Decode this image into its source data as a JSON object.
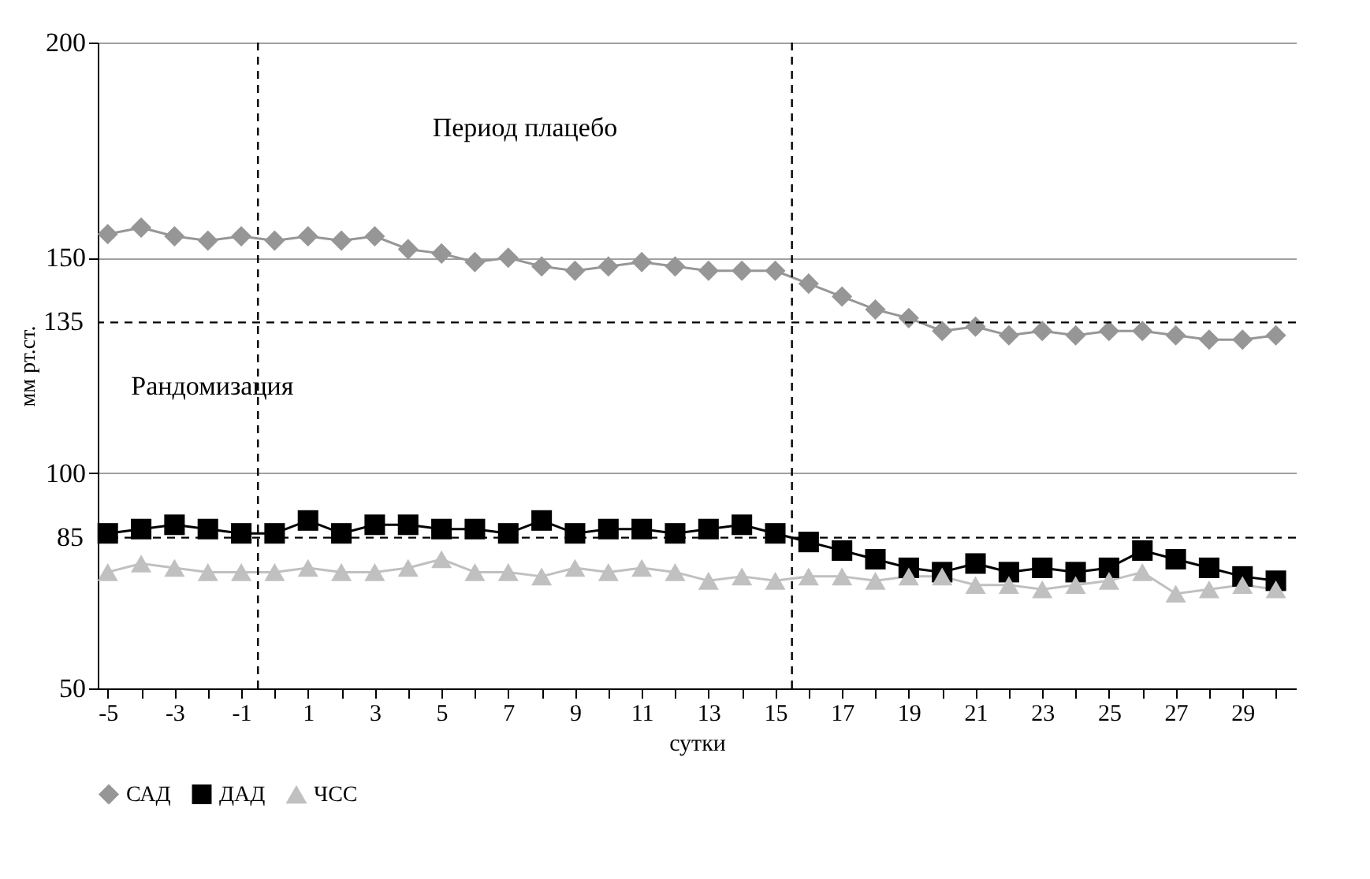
{
  "chart_data": {
    "type": "line",
    "xlabel": "сутки",
    "ylabel": "мм рт.ст.",
    "x": [
      -5,
      -4,
      -3,
      -2,
      -1,
      0,
      1,
      2,
      3,
      4,
      5,
      6,
      7,
      8,
      9,
      10,
      11,
      12,
      13,
      14,
      15,
      16,
      17,
      18,
      19,
      20,
      21,
      22,
      23,
      24,
      25,
      26,
      27,
      28,
      29,
      30
    ],
    "series": [
      {
        "name": "САД",
        "color": "#969696",
        "marker": "diamond",
        "values": [
          155.5,
          157,
          155,
          154,
          155,
          154,
          155,
          154,
          155,
          152,
          151,
          149,
          150,
          148,
          147,
          148,
          149,
          148,
          147,
          147,
          147,
          144,
          141,
          138,
          136,
          133,
          134,
          132,
          133,
          132,
          133,
          133,
          132,
          131,
          131,
          132
        ]
      },
      {
        "name": "ДАД",
        "color": "#000000",
        "marker": "square",
        "values": [
          86,
          87,
          88,
          87,
          86,
          86,
          89,
          86,
          88,
          88,
          87,
          87,
          86,
          89,
          86,
          87,
          87,
          86,
          87,
          88,
          86,
          84,
          82,
          80,
          78,
          77,
          79,
          77,
          78,
          77,
          78,
          82,
          80,
          78,
          76,
          75
        ]
      },
      {
        "name": "ЧСС",
        "color": "#c0c0c0",
        "marker": "triangle",
        "values": [
          77,
          79,
          78,
          77,
          77,
          77,
          78,
          77,
          77,
          78,
          80,
          77,
          77,
          76,
          78,
          77,
          78,
          77,
          75,
          76,
          75,
          76,
          76,
          75,
          76,
          76,
          74,
          74,
          73,
          74,
          75,
          77,
          72,
          73,
          74,
          73
        ]
      }
    ],
    "xlim": [
      -5.3,
      30.6
    ],
    "xticks": [
      -5,
      {
        "value": -4,
        "label": null
      },
      -3,
      {
        "value": -2,
        "label": null
      },
      -1,
      {
        "value": 0,
        "label": null
      },
      1,
      {
        "value": 2,
        "label": null
      },
      3,
      {
        "value": 4,
        "label": null
      },
      5,
      {
        "value": 6,
        "label": null
      },
      7,
      {
        "value": 8,
        "label": null
      },
      9,
      {
        "value": 10,
        "label": null
      },
      11,
      {
        "value": 12,
        "label": null
      },
      13,
      {
        "value": 14,
        "label": null
      },
      15,
      {
        "value": 16,
        "label": null
      },
      17,
      {
        "value": 18,
        "label": null
      },
      19,
      {
        "value": 20,
        "label": null
      },
      21,
      {
        "value": 22,
        "label": null
      },
      23,
      {
        "value": 24,
        "label": null
      },
      25,
      {
        "value": 26,
        "label": null
      },
      27,
      {
        "value": 28,
        "label": null
      },
      29,
      {
        "value": 30,
        "label": null
      }
    ],
    "ylim": [
      50,
      200
    ],
    "yticks": [
      50,
      100,
      150,
      200
    ],
    "grid": "y",
    "legend": "bottom",
    "ref_lines": [
      {
        "axis": "y",
        "value": 135,
        "label": "135",
        "line_style": "dashed",
        "color": "#000000"
      },
      {
        "axis": "y",
        "value": 85,
        "label": "85",
        "line_style": "dashed",
        "color": "#000000"
      },
      {
        "axis": "x",
        "value": -0.5,
        "line_style": "dashed",
        "color": "#000000"
      },
      {
        "axis": "x",
        "value": 15.5,
        "line_style": "dashed",
        "color": "#000000"
      }
    ],
    "annotations": [
      "Период плацебо",
      "Рандомизация"
    ]
  }
}
